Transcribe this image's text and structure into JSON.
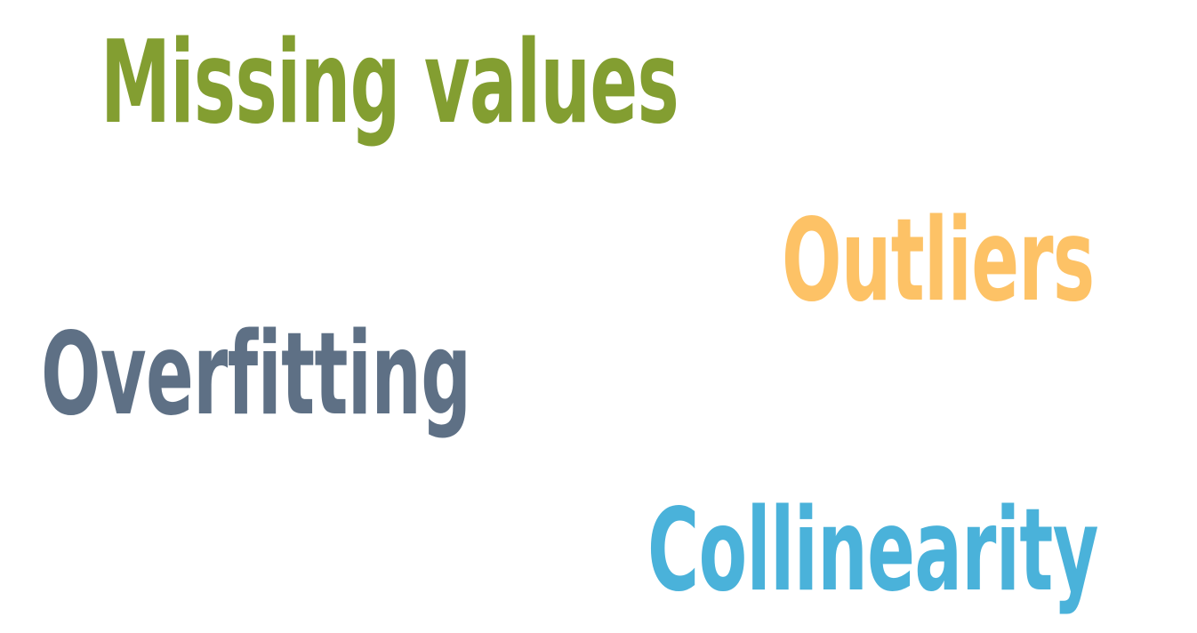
{
  "words": [
    {
      "text": "Missing values",
      "color": "#839e31"
    },
    {
      "text": "Outliers",
      "color": "#fdc266"
    },
    {
      "text": "Overfitting",
      "color": "#5e7085"
    },
    {
      "text": "Collinearity",
      "color": "#4ab2da"
    }
  ]
}
